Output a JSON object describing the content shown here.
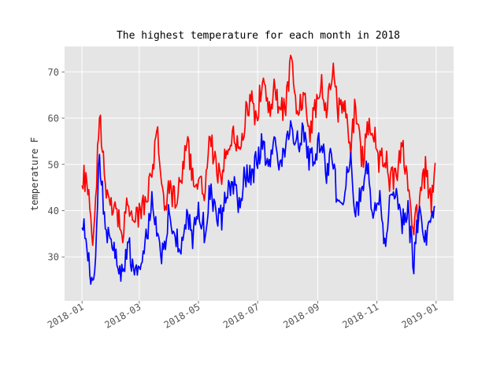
{
  "chart_data": {
    "type": "line",
    "title": "The highest temperature for each month in 2018",
    "xlabel": "",
    "ylabel": "temperature F",
    "x_ticks": [
      "2018-01",
      "2018-03",
      "2018-05",
      "2018-07",
      "2018-09",
      "2018-11",
      "2019-01"
    ],
    "y_ticks": [
      30,
      40,
      50,
      60,
      70
    ],
    "xlim": [
      "2017-12-14",
      "2019-01-19"
    ],
    "ylim": [
      20.5,
      75.5
    ],
    "grid": true,
    "colors": {
      "background": "#e5e5e5",
      "grid": "#ffffff",
      "high": "#ff0000",
      "low": "#0000ff"
    },
    "x_start": "2018-01-01",
    "x_end": "2018-12-31",
    "series": [
      {
        "key": "high",
        "color": "#ff0000",
        "x": [
          "2018-01-01",
          "2018-01-07",
          "2018-01-13",
          "2018-01-19",
          "2018-01-25",
          "2018-01-31",
          "2018-02-06",
          "2018-02-12",
          "2018-02-18",
          "2018-02-24",
          "2018-03-02",
          "2018-03-08",
          "2018-03-14",
          "2018-03-20",
          "2018-03-26",
          "2018-04-01",
          "2018-04-07",
          "2018-04-13",
          "2018-04-19",
          "2018-04-25",
          "2018-05-01",
          "2018-05-07",
          "2018-05-13",
          "2018-05-19",
          "2018-05-25",
          "2018-05-31",
          "2018-06-06",
          "2018-06-12",
          "2018-06-18",
          "2018-06-24",
          "2018-06-30",
          "2018-07-06",
          "2018-07-12",
          "2018-07-18",
          "2018-07-24",
          "2018-07-30",
          "2018-08-05",
          "2018-08-11",
          "2018-08-17",
          "2018-08-23",
          "2018-08-29",
          "2018-09-04",
          "2018-09-10",
          "2018-09-16",
          "2018-09-22",
          "2018-09-28",
          "2018-10-04",
          "2018-10-10",
          "2018-10-16",
          "2018-10-22",
          "2018-10-28",
          "2018-11-03",
          "2018-11-09",
          "2018-11-15",
          "2018-11-21",
          "2018-11-27",
          "2018-12-03",
          "2018-12-09",
          "2018-12-15",
          "2018-12-21",
          "2018-12-27",
          "2018-12-31"
        ],
        "y": [
          48,
          46,
          33,
          63,
          44,
          40,
          39,
          36,
          42,
          37,
          40,
          42,
          47,
          58,
          42,
          44,
          42,
          47,
          55,
          47,
          45,
          44,
          56,
          49,
          48,
          53,
          57,
          53,
          60,
          64,
          59,
          70,
          60,
          66,
          62,
          63,
          73,
          60,
          66,
          57,
          62,
          68,
          60,
          71,
          62,
          64,
          52,
          63,
          50,
          57,
          58,
          50,
          52,
          46,
          48,
          54,
          47,
          36,
          41,
          49,
          42,
          48
        ]
      },
      {
        "key": "low",
        "color": "#0000ff",
        "x": [
          "2018-01-01",
          "2018-01-07",
          "2018-01-13",
          "2018-01-19",
          "2018-01-25",
          "2018-01-31",
          "2018-02-06",
          "2018-02-12",
          "2018-02-18",
          "2018-02-24",
          "2018-03-02",
          "2018-03-08",
          "2018-03-14",
          "2018-03-20",
          "2018-03-26",
          "2018-04-01",
          "2018-04-07",
          "2018-04-13",
          "2018-04-19",
          "2018-04-25",
          "2018-05-01",
          "2018-05-07",
          "2018-05-13",
          "2018-05-19",
          "2018-05-25",
          "2018-05-31",
          "2018-06-06",
          "2018-06-12",
          "2018-06-18",
          "2018-06-24",
          "2018-06-30",
          "2018-07-06",
          "2018-07-12",
          "2018-07-18",
          "2018-07-24",
          "2018-07-30",
          "2018-08-05",
          "2018-08-11",
          "2018-08-17",
          "2018-08-23",
          "2018-08-29",
          "2018-09-04",
          "2018-09-10",
          "2018-09-16",
          "2018-09-22",
          "2018-09-28",
          "2018-10-04",
          "2018-10-10",
          "2018-10-16",
          "2018-10-22",
          "2018-10-28",
          "2018-11-03",
          "2018-11-09",
          "2018-11-15",
          "2018-11-21",
          "2018-11-27",
          "2018-12-03",
          "2018-12-09",
          "2018-12-15",
          "2018-12-21",
          "2018-12-27",
          "2018-12-31"
        ],
        "y": [
          38,
          30,
          23,
          52,
          37,
          33,
          30,
          26,
          32,
          27,
          28,
          33,
          42,
          35,
          29,
          42,
          34,
          32,
          40,
          34,
          41,
          36,
          44,
          40,
          38,
          45,
          45,
          42,
          48,
          47,
          51,
          55,
          48,
          55,
          50,
          54,
          58,
          55,
          57,
          50,
          53,
          55,
          48,
          52,
          41,
          44,
          52,
          38,
          45,
          50,
          40,
          44,
          32,
          43,
          45,
          38,
          40,
          28,
          43,
          33,
          41,
          38
        ]
      }
    ]
  }
}
